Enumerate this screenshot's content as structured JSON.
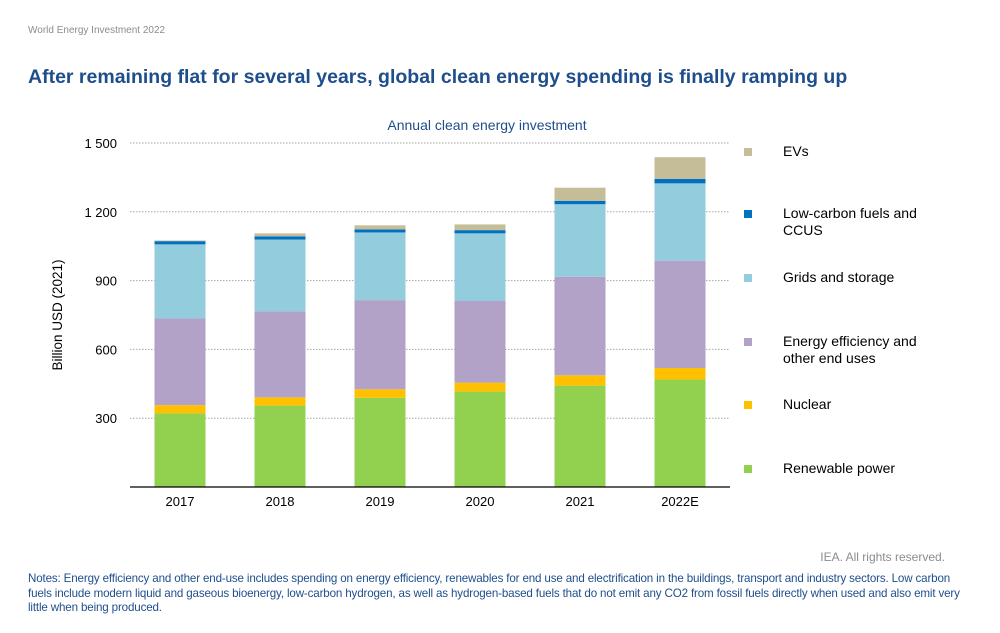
{
  "header": "World Energy Investment 2022",
  "title": "After remaining flat for several years, global clean energy spending is finally ramping up",
  "rights": "IEA. All rights reserved.",
  "notes": "Notes: Energy efficiency and other end-use includes spending on energy efficiency, renewables for end use and electrification in the buildings, transport and industry sectors. Low carbon fuels include modern liquid and gaseous bioenergy, low-carbon hydrogen, as well as hydrogen-based fuels that do not emit any CO2 from fossil fuels directly when used and also emit very little when being produced.",
  "chart_data": {
    "type": "bar",
    "stacked": true,
    "title": "Annual clean energy investment",
    "ylabel": "Billion USD (2021)",
    "xlabel": "",
    "ylim": [
      0,
      1500
    ],
    "yticks": [
      300,
      600,
      900,
      1200,
      1500
    ],
    "ytick_labels": [
      "300",
      "600",
      "900",
      "1 200",
      "1 500"
    ],
    "grid": true,
    "legend_position": "right",
    "categories": [
      "2017",
      "2018",
      "2019",
      "2020",
      "2021",
      "2022E"
    ],
    "series": [
      {
        "name": "Renewable power",
        "color": "#92d050",
        "values": [
          321,
          355,
          389,
          416,
          442,
          469
        ]
      },
      {
        "name": "Nuclear",
        "color": "#ffc000",
        "values": [
          36,
          36,
          37,
          39,
          45,
          50
        ]
      },
      {
        "name": "Energy efficiency and other end uses",
        "color": "#b3a2c7",
        "values": [
          378,
          375,
          389,
          356,
          430,
          468
        ]
      },
      {
        "name": "Grids and storage",
        "color": "#93cddd",
        "values": [
          323,
          313,
          295,
          295,
          316,
          337
        ]
      },
      {
        "name": "Low-carbon fuels and CCUS",
        "color": "#0070c0",
        "values": [
          14,
          14,
          13,
          14,
          15,
          19
        ]
      },
      {
        "name": "EVs",
        "color": "#c4bd97",
        "values": [
          3,
          13,
          18,
          25,
          57,
          95
        ]
      }
    ],
    "legend_lines": [
      [
        "Renewable power"
      ],
      [
        "Nuclear"
      ],
      [
        "Energy efficiency and",
        "other end uses"
      ],
      [
        "Grids and storage"
      ],
      [
        "Low-carbon fuels and",
        "CCUS"
      ],
      [
        "EVs"
      ]
    ]
  }
}
